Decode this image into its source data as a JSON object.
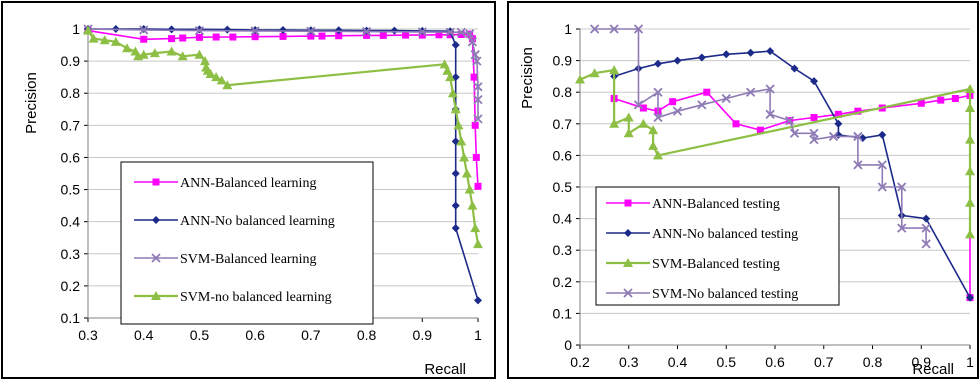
{
  "chart_data": [
    {
      "type": "line",
      "xlabel": "Recall",
      "ylabel": "Precision",
      "xlim": [
        0.3,
        1
      ],
      "ylim": [
        0.1,
        1
      ],
      "xticks": [
        "0.3",
        "0.4",
        "0.5",
        "0.6",
        "0.7",
        "0.8",
        "0.9",
        "1"
      ],
      "yticks": [
        "0.1",
        "0.2",
        "0.3",
        "0.4",
        "0.5",
        "0.6",
        "0.7",
        "0.8",
        "0.9",
        "1"
      ],
      "grid": "horizontal",
      "legend_position": "lower-left",
      "series": [
        {
          "name": "ANN-Balanced learning",
          "color": "#ff00ff",
          "marker": "square",
          "points": [
            [
              0.3,
              0.995
            ],
            [
              0.4,
              0.968
            ],
            [
              0.45,
              0.97
            ],
            [
              0.47,
              0.972
            ],
            [
              0.5,
              0.974
            ],
            [
              0.53,
              0.975
            ],
            [
              0.56,
              0.975
            ],
            [
              0.6,
              0.976
            ],
            [
              0.65,
              0.977
            ],
            [
              0.7,
              0.978
            ],
            [
              0.72,
              0.978
            ],
            [
              0.75,
              0.979
            ],
            [
              0.8,
              0.98
            ],
            [
              0.83,
              0.98
            ],
            [
              0.87,
              0.981
            ],
            [
              0.9,
              0.981
            ],
            [
              0.93,
              0.982
            ],
            [
              0.95,
              0.982
            ],
            [
              0.97,
              0.983
            ],
            [
              0.985,
              0.984
            ],
            [
              0.99,
              0.97
            ],
            [
              0.993,
              0.85
            ],
            [
              0.995,
              0.7
            ],
            [
              0.997,
              0.6
            ],
            [
              1.0,
              0.51
            ]
          ]
        },
        {
          "name": "ANN-No balanced learning",
          "color": "#1c2a8a",
          "marker": "diamond",
          "points": [
            [
              0.3,
              1.0
            ],
            [
              0.35,
              1.0
            ],
            [
              0.4,
              1.0
            ],
            [
              0.45,
              0.999
            ],
            [
              0.5,
              0.999
            ],
            [
              0.55,
              0.998
            ],
            [
              0.6,
              0.997
            ],
            [
              0.65,
              0.997
            ],
            [
              0.7,
              0.996
            ],
            [
              0.75,
              0.996
            ],
            [
              0.8,
              0.995
            ],
            [
              0.85,
              0.995
            ],
            [
              0.9,
              0.994
            ],
            [
              0.95,
              0.993
            ],
            [
              0.96,
              0.95
            ],
            [
              0.96,
              0.85
            ],
            [
              0.96,
              0.75
            ],
            [
              0.96,
              0.65
            ],
            [
              0.96,
              0.55
            ],
            [
              0.96,
              0.45
            ],
            [
              0.96,
              0.38
            ],
            [
              1.0,
              0.155
            ]
          ]
        },
        {
          "name": "SVM-Balanced learning",
          "color": "#8e7bb5",
          "marker": "x",
          "points": [
            [
              0.3,
              1.0
            ],
            [
              0.4,
              0.997
            ],
            [
              0.5,
              0.995
            ],
            [
              0.6,
              0.994
            ],
            [
              0.7,
              0.993
            ],
            [
              0.8,
              0.992
            ],
            [
              0.9,
              0.991
            ],
            [
              0.95,
              0.99
            ],
            [
              0.97,
              0.99
            ],
            [
              0.985,
              0.985
            ],
            [
              0.99,
              0.96
            ],
            [
              0.995,
              0.92
            ],
            [
              0.998,
              0.9
            ],
            [
              1.0,
              0.82
            ],
            [
              1.0,
              0.72
            ],
            [
              1.0,
              0.78
            ]
          ]
        },
        {
          "name": "SVM-no balanced learning",
          "color": "#8dbf45",
          "marker": "triangle",
          "points": [
            [
              0.3,
              0.995
            ],
            [
              0.31,
              0.97
            ],
            [
              0.33,
              0.965
            ],
            [
              0.35,
              0.96
            ],
            [
              0.37,
              0.94
            ],
            [
              0.385,
              0.93
            ],
            [
              0.39,
              0.915
            ],
            [
              0.4,
              0.92
            ],
            [
              0.42,
              0.925
            ],
            [
              0.45,
              0.93
            ],
            [
              0.47,
              0.915
            ],
            [
              0.5,
              0.92
            ],
            [
              0.51,
              0.9
            ],
            [
              0.512,
              0.88
            ],
            [
              0.515,
              0.87
            ],
            [
              0.52,
              0.86
            ],
            [
              0.53,
              0.85
            ],
            [
              0.54,
              0.84
            ],
            [
              0.55,
              0.825
            ],
            [
              0.94,
              0.89
            ],
            [
              0.945,
              0.87
            ],
            [
              0.95,
              0.85
            ],
            [
              0.955,
              0.8
            ],
            [
              0.96,
              0.75
            ],
            [
              0.965,
              0.7
            ],
            [
              0.97,
              0.65
            ],
            [
              0.975,
              0.6
            ],
            [
              0.98,
              0.55
            ],
            [
              0.985,
              0.5
            ],
            [
              0.99,
              0.45
            ],
            [
              0.995,
              0.38
            ],
            [
              1.0,
              0.33
            ]
          ]
        }
      ]
    },
    {
      "type": "line",
      "xlabel": "Recall",
      "ylabel": "Precision",
      "xlim": [
        0.2,
        1
      ],
      "ylim": [
        0,
        1
      ],
      "xticks": [
        "0.2",
        "0.3",
        "0.4",
        "0.5",
        "0.6",
        "0.7",
        "0.8",
        "0.9",
        "1"
      ],
      "yticks": [
        "0",
        "0.1",
        "0.2",
        "0.3",
        "0.4",
        "0.5",
        "0.6",
        "0.7",
        "0.8",
        "0.9",
        "1"
      ],
      "grid": "horizontal",
      "legend_position": "lower-left",
      "series": [
        {
          "name": "ANN-Balanced testing",
          "color": "#ff00ff",
          "marker": "square",
          "points": [
            [
              0.27,
              0.78
            ],
            [
              0.33,
              0.75
            ],
            [
              0.36,
              0.74
            ],
            [
              0.39,
              0.77
            ],
            [
              0.46,
              0.8
            ],
            [
              0.52,
              0.7
            ],
            [
              0.57,
              0.68
            ],
            [
              0.63,
              0.71
            ],
            [
              0.68,
              0.72
            ],
            [
              0.73,
              0.73
            ],
            [
              0.77,
              0.74
            ],
            [
              0.82,
              0.75
            ],
            [
              0.9,
              0.765
            ],
            [
              0.94,
              0.775
            ],
            [
              0.97,
              0.78
            ],
            [
              1.0,
              0.79
            ],
            [
              1.0,
              0.15
            ]
          ]
        },
        {
          "name": "ANN-No balanced testing",
          "color": "#1c2a8a",
          "marker": "diamond",
          "points": [
            [
              0.27,
              0.85
            ],
            [
              0.32,
              0.875
            ],
            [
              0.36,
              0.89
            ],
            [
              0.4,
              0.9
            ],
            [
              0.45,
              0.91
            ],
            [
              0.5,
              0.92
            ],
            [
              0.55,
              0.925
            ],
            [
              0.59,
              0.93
            ],
            [
              0.64,
              0.875
            ],
            [
              0.68,
              0.835
            ],
            [
              0.73,
              0.7
            ],
            [
              0.73,
              0.665
            ],
            [
              0.78,
              0.655
            ],
            [
              0.82,
              0.665
            ],
            [
              0.86,
              0.41
            ],
            [
              0.91,
              0.4
            ],
            [
              1.0,
              0.15
            ]
          ]
        },
        {
          "name": "SVM-Balanced testing",
          "color": "#8dbf45",
          "marker": "triangle",
          "points": [
            [
              0.2,
              0.84
            ],
            [
              0.23,
              0.86
            ],
            [
              0.27,
              0.87
            ],
            [
              0.27,
              0.7
            ],
            [
              0.3,
              0.72
            ],
            [
              0.3,
              0.67
            ],
            [
              0.33,
              0.7
            ],
            [
              0.35,
              0.68
            ],
            [
              0.35,
              0.63
            ],
            [
              0.36,
              0.6
            ],
            [
              1.0,
              0.81
            ],
            [
              1.0,
              0.75
            ],
            [
              1.0,
              0.65
            ],
            [
              1.0,
              0.55
            ],
            [
              1.0,
              0.45
            ],
            [
              1.0,
              0.35
            ]
          ]
        },
        {
          "name": "SVM-No balanced testing",
          "color": "#8e7bb5",
          "marker": "x",
          "points": [
            [
              0.23,
              1.0
            ],
            [
              0.27,
              1.0
            ],
            [
              0.32,
              1.0
            ],
            [
              0.32,
              0.76
            ],
            [
              0.36,
              0.8
            ],
            [
              0.36,
              0.72
            ],
            [
              0.4,
              0.74
            ],
            [
              0.45,
              0.76
            ],
            [
              0.5,
              0.78
            ],
            [
              0.55,
              0.8
            ],
            [
              0.59,
              0.81
            ],
            [
              0.59,
              0.73
            ],
            [
              0.63,
              0.71
            ],
            [
              0.64,
              0.67
            ],
            [
              0.68,
              0.67
            ],
            [
              0.68,
              0.65
            ],
            [
              0.72,
              0.66
            ],
            [
              0.77,
              0.66
            ],
            [
              0.77,
              0.57
            ],
            [
              0.82,
              0.57
            ],
            [
              0.82,
              0.5
            ],
            [
              0.86,
              0.5
            ],
            [
              0.86,
              0.37
            ],
            [
              0.91,
              0.37
            ],
            [
              0.91,
              0.32
            ]
          ]
        }
      ]
    }
  ]
}
